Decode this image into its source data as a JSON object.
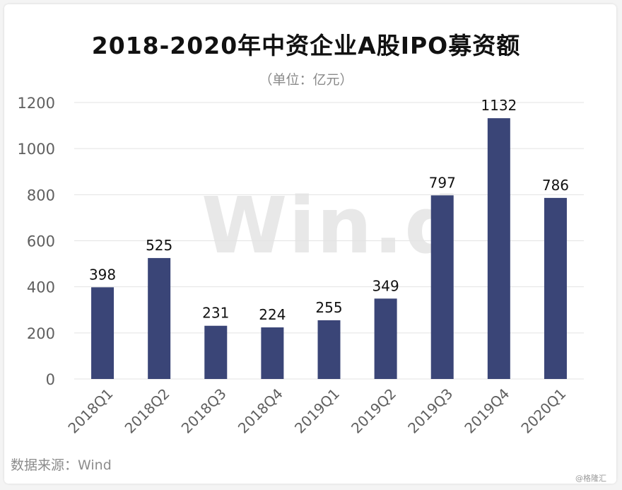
{
  "colors": {
    "bar": "#3a4577",
    "grid": "#e3e3e3",
    "background": "#ffffff"
  },
  "source_label": "数据来源：Wind",
  "credit": "@格隆汇",
  "watermark": "Win.d",
  "chart_data": {
    "type": "bar",
    "title": "2018-2020年中资企业A股IPO募资额",
    "subtitle": "（单位：亿元）",
    "categories": [
      "2018Q1",
      "2018Q2",
      "2018Q3",
      "2018Q4",
      "2019Q1",
      "2019Q2",
      "2019Q3",
      "2019Q4",
      "2020Q1"
    ],
    "series": [
      {
        "values": [
          398,
          525,
          231,
          224,
          255,
          349,
          797,
          1132,
          786
        ]
      }
    ],
    "ylim": [
      0,
      1200
    ],
    "yticks": [
      0,
      200,
      400,
      600,
      800,
      1000,
      1200
    ],
    "grid": true,
    "data_labels": true,
    "xlabel": "",
    "ylabel": ""
  }
}
